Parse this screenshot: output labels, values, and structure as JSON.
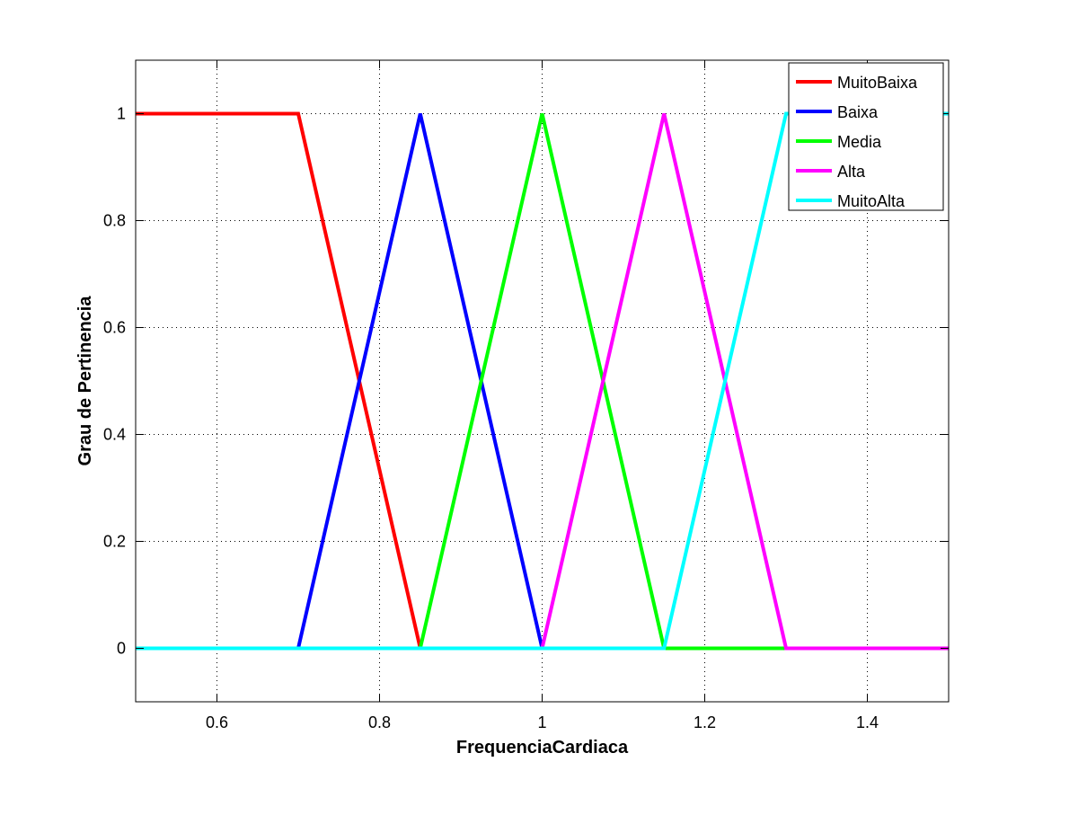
{
  "chart_data": {
    "type": "line",
    "xlabel": "FrequenciaCardiaca",
    "ylabel": "Grau de Pertinencia",
    "xlim": [
      0.5,
      1.5
    ],
    "ylim": [
      -0.1,
      1.1
    ],
    "x_ticks": [
      0.6,
      0.8,
      1.0,
      1.2,
      1.4
    ],
    "x_tick_labels": [
      "0.6",
      "0.8",
      "1",
      "1.2",
      "1.4"
    ],
    "y_ticks": [
      0,
      0.2,
      0.4,
      0.6,
      0.8,
      1.0
    ],
    "y_tick_labels": [
      "0",
      "0.2",
      "0.4",
      "0.6",
      "0.8",
      "1"
    ],
    "grid": true,
    "legend_position": "top-right",
    "series": [
      {
        "name": "MuitoBaixa",
        "color": "#ff0000",
        "points": [
          [
            0.5,
            1
          ],
          [
            0.7,
            1
          ],
          [
            0.85,
            0
          ],
          [
            1.5,
            0
          ]
        ]
      },
      {
        "name": "Baixa",
        "color": "#0000ff",
        "points": [
          [
            0.5,
            0
          ],
          [
            0.7,
            0
          ],
          [
            0.85,
            1
          ],
          [
            1.0,
            0
          ],
          [
            1.5,
            0
          ]
        ]
      },
      {
        "name": "Media",
        "color": "#00ff00",
        "points": [
          [
            0.5,
            0
          ],
          [
            0.85,
            0
          ],
          [
            1.0,
            1
          ],
          [
            1.15,
            0
          ],
          [
            1.5,
            0
          ]
        ]
      },
      {
        "name": "Alta",
        "color": "#ff00ff",
        "points": [
          [
            0.5,
            0
          ],
          [
            1.0,
            0
          ],
          [
            1.15,
            1
          ],
          [
            1.3,
            0
          ],
          [
            1.5,
            0
          ]
        ]
      },
      {
        "name": "MuitoAlta",
        "color": "#00ffff",
        "points": [
          [
            0.5,
            0
          ],
          [
            1.15,
            0
          ],
          [
            1.3,
            1
          ],
          [
            1.5,
            1
          ]
        ]
      }
    ]
  }
}
